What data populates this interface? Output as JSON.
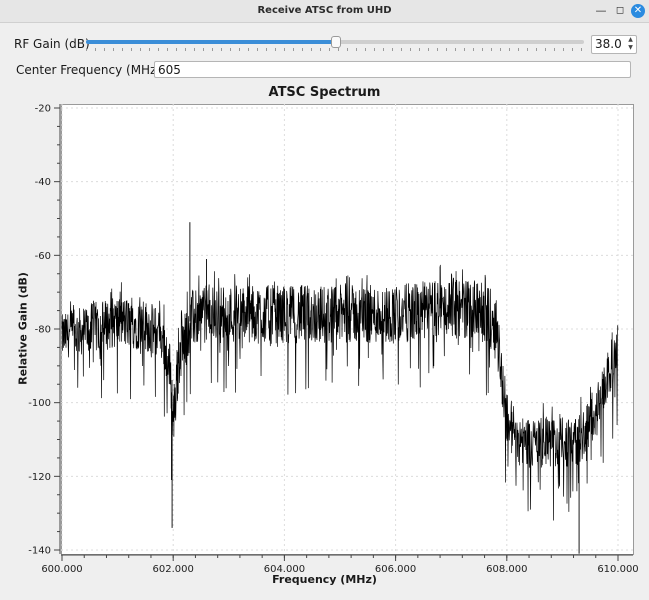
{
  "window": {
    "title": "Receive ATSC from UHD"
  },
  "controls": {
    "rf_gain_label": "RF Gain (dB)",
    "rf_gain_value": "38.0",
    "rf_gain_level": 0.5,
    "center_freq_label": "Center Frequency (MHz):",
    "center_freq_value": "605"
  },
  "chart_data": {
    "type": "line",
    "title": "ATSC Spectrum",
    "xlabel": "Frequency (MHz)",
    "ylabel": "Relative Gain (dB)",
    "xlim": [
      600.0,
      610.0
    ],
    "ylim": [
      -140,
      -20
    ],
    "x_ticks": [
      "600.000",
      "602.000",
      "604.000",
      "606.000",
      "608.000",
      "610.000"
    ],
    "y_ticks": [
      "-20",
      "-40",
      "-60",
      "-80",
      "-100",
      "-120",
      "-140"
    ],
    "grid": true,
    "series": [
      {
        "x": [
          600.0,
          600.5,
          601.0,
          601.5,
          601.8,
          601.95,
          602.0,
          602.1,
          602.3,
          602.5,
          603.0,
          603.5,
          604.0,
          604.5,
          605.0,
          605.5,
          606.0,
          606.5,
          607.0,
          607.5,
          607.8,
          608.0,
          608.2,
          608.5,
          609.0,
          609.3,
          609.6,
          609.8,
          610.0
        ],
        "mean": [
          -82,
          -80,
          -78,
          -79,
          -82,
          -92,
          -105,
          -88,
          -78,
          -76,
          -76,
          -76,
          -76,
          -76,
          -76,
          -76,
          -76,
          -75,
          -74,
          -75,
          -78,
          -104,
          -110,
          -111,
          -111,
          -110,
          -103,
          -94,
          -86
        ],
        "spread": [
          6,
          7,
          7,
          7,
          7,
          8,
          10,
          8,
          8,
          8,
          8,
          8,
          8,
          8,
          8,
          8,
          8,
          8,
          8,
          8,
          8,
          8,
          7,
          7,
          7,
          7,
          7,
          6,
          6
        ],
        "spikes": [
          [
            602.3,
            -51
          ],
          [
            601.98,
            -134
          ],
          [
            609.3,
            -141
          ],
          [
            602.6,
            -61
          ],
          [
            606.8,
            -63
          ],
          [
            601.97,
            -121
          ]
        ]
      }
    ]
  }
}
